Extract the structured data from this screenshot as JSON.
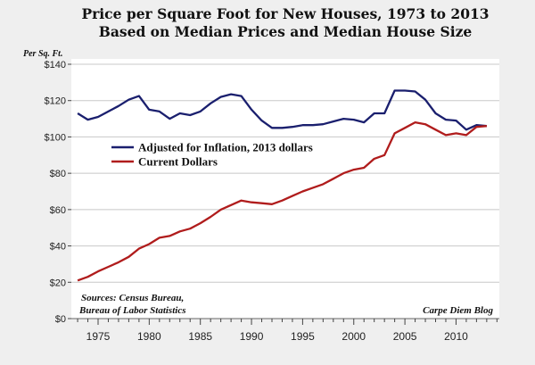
{
  "chart_data": {
    "type": "line",
    "title": "Price per Square Foot for New Houses, 1973 to 2013",
    "subtitle": "Based on Median Prices and Median House Size",
    "ylabel": "Per Sq. Ft.",
    "xlabel": "",
    "ylim": [
      0,
      140
    ],
    "xlim": [
      1973,
      2013
    ],
    "y_ticks": [
      "$0",
      "$20",
      "$40",
      "$60",
      "$80",
      "$100",
      "$120",
      "$140"
    ],
    "y_tick_values": [
      0,
      20,
      40,
      60,
      80,
      100,
      120,
      140
    ],
    "x_ticks": [
      "1975",
      "1980",
      "1985",
      "1990",
      "1995",
      "2000",
      "2005",
      "2010"
    ],
    "x_tick_values": [
      1975,
      1980,
      1985,
      1990,
      1995,
      2000,
      2005,
      2010
    ],
    "grid": true,
    "legend_placement": "center-left",
    "x": [
      1973,
      1974,
      1975,
      1976,
      1977,
      1978,
      1979,
      1980,
      1981,
      1982,
      1983,
      1984,
      1985,
      1986,
      1987,
      1988,
      1989,
      1990,
      1991,
      1992,
      1993,
      1994,
      1995,
      1996,
      1997,
      1998,
      1999,
      2000,
      2001,
      2002,
      2003,
      2004,
      2005,
      2006,
      2007,
      2008,
      2009,
      2010,
      2011,
      2012,
      2013
    ],
    "series": [
      {
        "name": "Adjusted for Inflation, 2013 dollars",
        "color": "#1a1f6e",
        "values": [
          113,
          109.5,
          111,
          114,
          117,
          120.5,
          122.5,
          115,
          114,
          110,
          113,
          112,
          114,
          118.5,
          122,
          123.5,
          122.5,
          115,
          109,
          105,
          105,
          105.5,
          106.5,
          106.5,
          107,
          108.5,
          110,
          109.5,
          108,
          113,
          113,
          125.5,
          125.5,
          125,
          120.5,
          113,
          109.5,
          109,
          104,
          106.5,
          106
        ]
      },
      {
        "name": "Current Dollars",
        "color": "#b01c1c",
        "values": [
          21,
          23,
          26,
          28.5,
          31,
          34,
          38.5,
          41,
          44.5,
          45.5,
          48,
          49.5,
          52.5,
          56,
          60,
          62.5,
          65,
          64,
          63.5,
          63,
          65,
          67.5,
          70,
          72,
          74,
          77,
          80,
          82,
          83,
          88,
          90,
          102,
          105,
          108,
          107,
          104,
          101,
          102,
          101,
          105.5,
          106
        ]
      }
    ],
    "annotations": [
      "Sources: Census Bureau,",
      "Bureau of Labor Statistics",
      "Carpe Diem Blog"
    ]
  }
}
